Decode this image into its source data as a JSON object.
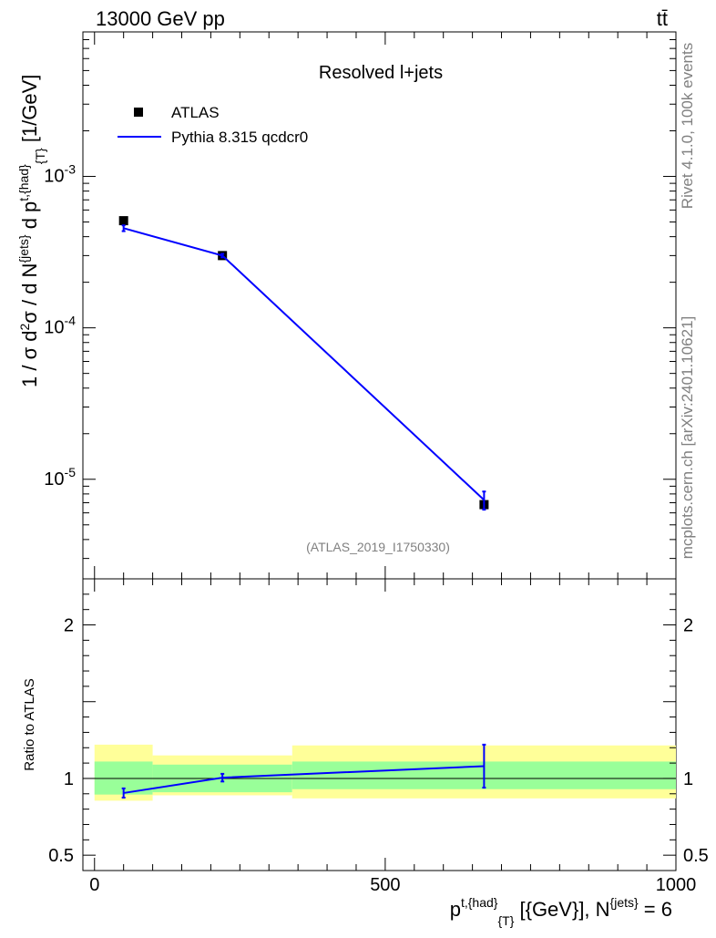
{
  "header": {
    "left": "13000 GeV pp",
    "right": "tt̄"
  },
  "side_labels": {
    "rivet": "Rivet 4.1.0,  100k events",
    "mcplots": "mcplots.cern.ch [arXiv:2401.10621]"
  },
  "chart_data": [
    {
      "type": "line",
      "title": "Resolved l+jets",
      "analysis_tag": "(ATLAS_2019_I1750330)",
      "ylabel": "1 / σ d²σ / d N^{jets} d p^{t,{had}}_{T} [1/GeV]",
      "yscale": "log",
      "ylim": [
        2.2e-06,
        0.009
      ],
      "xlim": [
        -20,
        1000
      ],
      "y_ticks": [
        "10^-5",
        "10^-4",
        "10^-3"
      ],
      "legend_position": "top-left",
      "series": [
        {
          "name": "ATLAS",
          "style": "markers",
          "x": [
            50,
            220,
            670
          ],
          "y": [
            0.00051,
            0.0003,
            6.8e-06
          ],
          "x_bins": [
            [
              0,
              100
            ],
            [
              100,
              340
            ],
            [
              340,
              1000
            ]
          ]
        },
        {
          "name": "Pythia 8.315 qcdcr0",
          "style": "line",
          "color": "#0000ff",
          "x": [
            50,
            220,
            670
          ],
          "y": [
            0.000455,
            0.0003,
            7.3e-06
          ],
          "yerr": [
            2e-05,
            8e-06,
            1e-06
          ]
        }
      ]
    },
    {
      "type": "line",
      "ylabel": "Ratio to ATLAS",
      "xlabel": "p^{t,{had}}_{T} [{GeV}], N^{jets} = 6",
      "ylim": [
        0.4,
        2.3
      ],
      "xlim": [
        -20,
        1000
      ],
      "x_ticks": [
        "0",
        "500",
        "1000"
      ],
      "y_ticks": [
        "0.5",
        "1",
        "2"
      ],
      "reference_line": 1,
      "bands": {
        "inner_color": "#99ff99",
        "outer_color": "#ffff99",
        "bins": [
          {
            "x": [
              0,
              100
            ],
            "inner": [
              0.895,
              1.11
            ],
            "outer": [
              0.855,
              1.22
            ]
          },
          {
            "x": [
              100,
              340
            ],
            "inner": [
              0.91,
              1.09
            ],
            "outer": [
              0.89,
              1.15
            ]
          },
          {
            "x": [
              340,
              1000
            ],
            "inner": [
              0.93,
              1.11
            ],
            "outer": [
              0.87,
              1.215
            ]
          }
        ]
      },
      "series": [
        {
          "name": "Pythia 8.315 qcdcr0 / ATLAS",
          "color": "#0000ff",
          "x": [
            50,
            220,
            670
          ],
          "y": [
            0.905,
            1.005,
            1.08
          ],
          "yerr": [
            0.03,
            0.025,
            0.14
          ]
        }
      ]
    }
  ]
}
